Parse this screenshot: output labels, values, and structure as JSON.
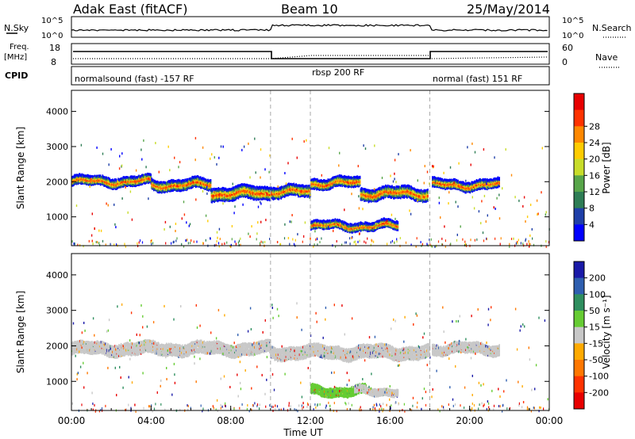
{
  "header": {
    "station": "Adak East (fitACF)",
    "beam": "Beam 10",
    "date": "25/May/2014"
  },
  "aux_panels": {
    "nsky_label": "N.Sky",
    "nsearch_label": "N.Search",
    "nsky_ticks": [
      "10^5",
      "10^0"
    ],
    "nsearch_ticks": [
      "10^5",
      "10^0"
    ],
    "freq_label": "Freq.",
    "freq_unit": "[MHz]",
    "freq_ticks": [
      "18",
      "8"
    ],
    "nave_label": "Nave",
    "nave_ticks": [
      "60",
      "0"
    ],
    "cpid_label": "CPID"
  },
  "chart_data": [
    {
      "type": "heatmap",
      "title": "",
      "panel": "power",
      "xlabel": "",
      "ylabel": "Slant Range [km]",
      "xlim_hours": [
        0,
        24
      ],
      "ylim_km": [
        180,
        4600
      ],
      "x_ticks": [
        "00:00",
        "04:00",
        "08:00",
        "12:00",
        "16:00",
        "20:00",
        "00:00"
      ],
      "y_ticks": [
        1000,
        2000,
        3000,
        4000
      ],
      "colorbar": {
        "label": "Power [dB]",
        "ticks": [
          4,
          8,
          12,
          16,
          20,
          24,
          28
        ],
        "colors": [
          "#0000ff",
          "#1f3fa8",
          "#2e7d55",
          "#58a64a",
          "#c8dd2a",
          "#ffcc00",
          "#ff8800",
          "#ff3300",
          "#e80000"
        ]
      },
      "cpid_segments": [
        {
          "label": "normalsound (fast) -157 RF",
          "start_h": 0,
          "end_h": 10
        },
        {
          "label": "rbsp 200 RF",
          "start_h": 10,
          "end_h": 18
        },
        {
          "label": "normal (fast) 151 RF",
          "start_h": 18,
          "end_h": 24
        }
      ],
      "scatter_bands": [
        {
          "start_h": 0.0,
          "end_h": 4.0,
          "center_km": 2050,
          "width_km": 230
        },
        {
          "start_h": 4.0,
          "end_h": 7.0,
          "center_km": 1950,
          "width_km": 260
        },
        {
          "start_h": 7.0,
          "end_h": 10.0,
          "center_km": 1700,
          "width_km": 330
        },
        {
          "start_h": 10.0,
          "end_h": 12.0,
          "center_km": 1750,
          "width_km": 280
        },
        {
          "start_h": 12.0,
          "end_h": 14.5,
          "center_km": 2000,
          "width_km": 250
        },
        {
          "start_h": 14.5,
          "end_h": 17.9,
          "center_km": 1700,
          "width_km": 300
        },
        {
          "start_h": 12.0,
          "end_h": 16.4,
          "center_km": 780,
          "width_km": 200
        },
        {
          "start_h": 18.1,
          "end_h": 21.5,
          "center_km": 1950,
          "width_km": 230
        }
      ]
    },
    {
      "type": "heatmap",
      "title": "",
      "panel": "velocity",
      "xlabel": "Time UT",
      "ylabel": "Slant Range [km]",
      "xlim_hours": [
        0,
        24
      ],
      "ylim_km": [
        180,
        4600
      ],
      "x_ticks": [
        "00:00",
        "04:00",
        "08:00",
        "12:00",
        "16:00",
        "20:00",
        "00:00"
      ],
      "y_ticks": [
        1000,
        2000,
        3000,
        4000
      ],
      "colorbar": {
        "label": "Velocity [m s⁻¹]",
        "ticks": [
          200,
          100,
          50,
          15,
          -15,
          -50,
          -100,
          -200
        ],
        "colors": [
          "#1a1aa8",
          "#2f5fb0",
          "#2f8f5f",
          "#66cc33",
          "#c8c8c8",
          "#ffaa00",
          "#ff7700",
          "#ff3300",
          "#e80000"
        ]
      },
      "scatter_bands": [
        {
          "start_h": 0.0,
          "end_h": 10.0,
          "center_km": 1950,
          "width_km": 300,
          "color": "#c8c8c8"
        },
        {
          "start_h": 10.0,
          "end_h": 18.0,
          "center_km": 1850,
          "width_km": 320,
          "color": "#c8c8c8"
        },
        {
          "start_h": 12.0,
          "end_h": 14.8,
          "center_km": 760,
          "width_km": 220,
          "color": "#66cc33"
        },
        {
          "start_h": 14.2,
          "end_h": 16.4,
          "center_km": 760,
          "width_km": 160,
          "color": "#c8c8c8"
        },
        {
          "start_h": 18.1,
          "end_h": 21.5,
          "center_km": 1950,
          "width_km": 250,
          "color": "#c8c8c8"
        }
      ]
    }
  ]
}
